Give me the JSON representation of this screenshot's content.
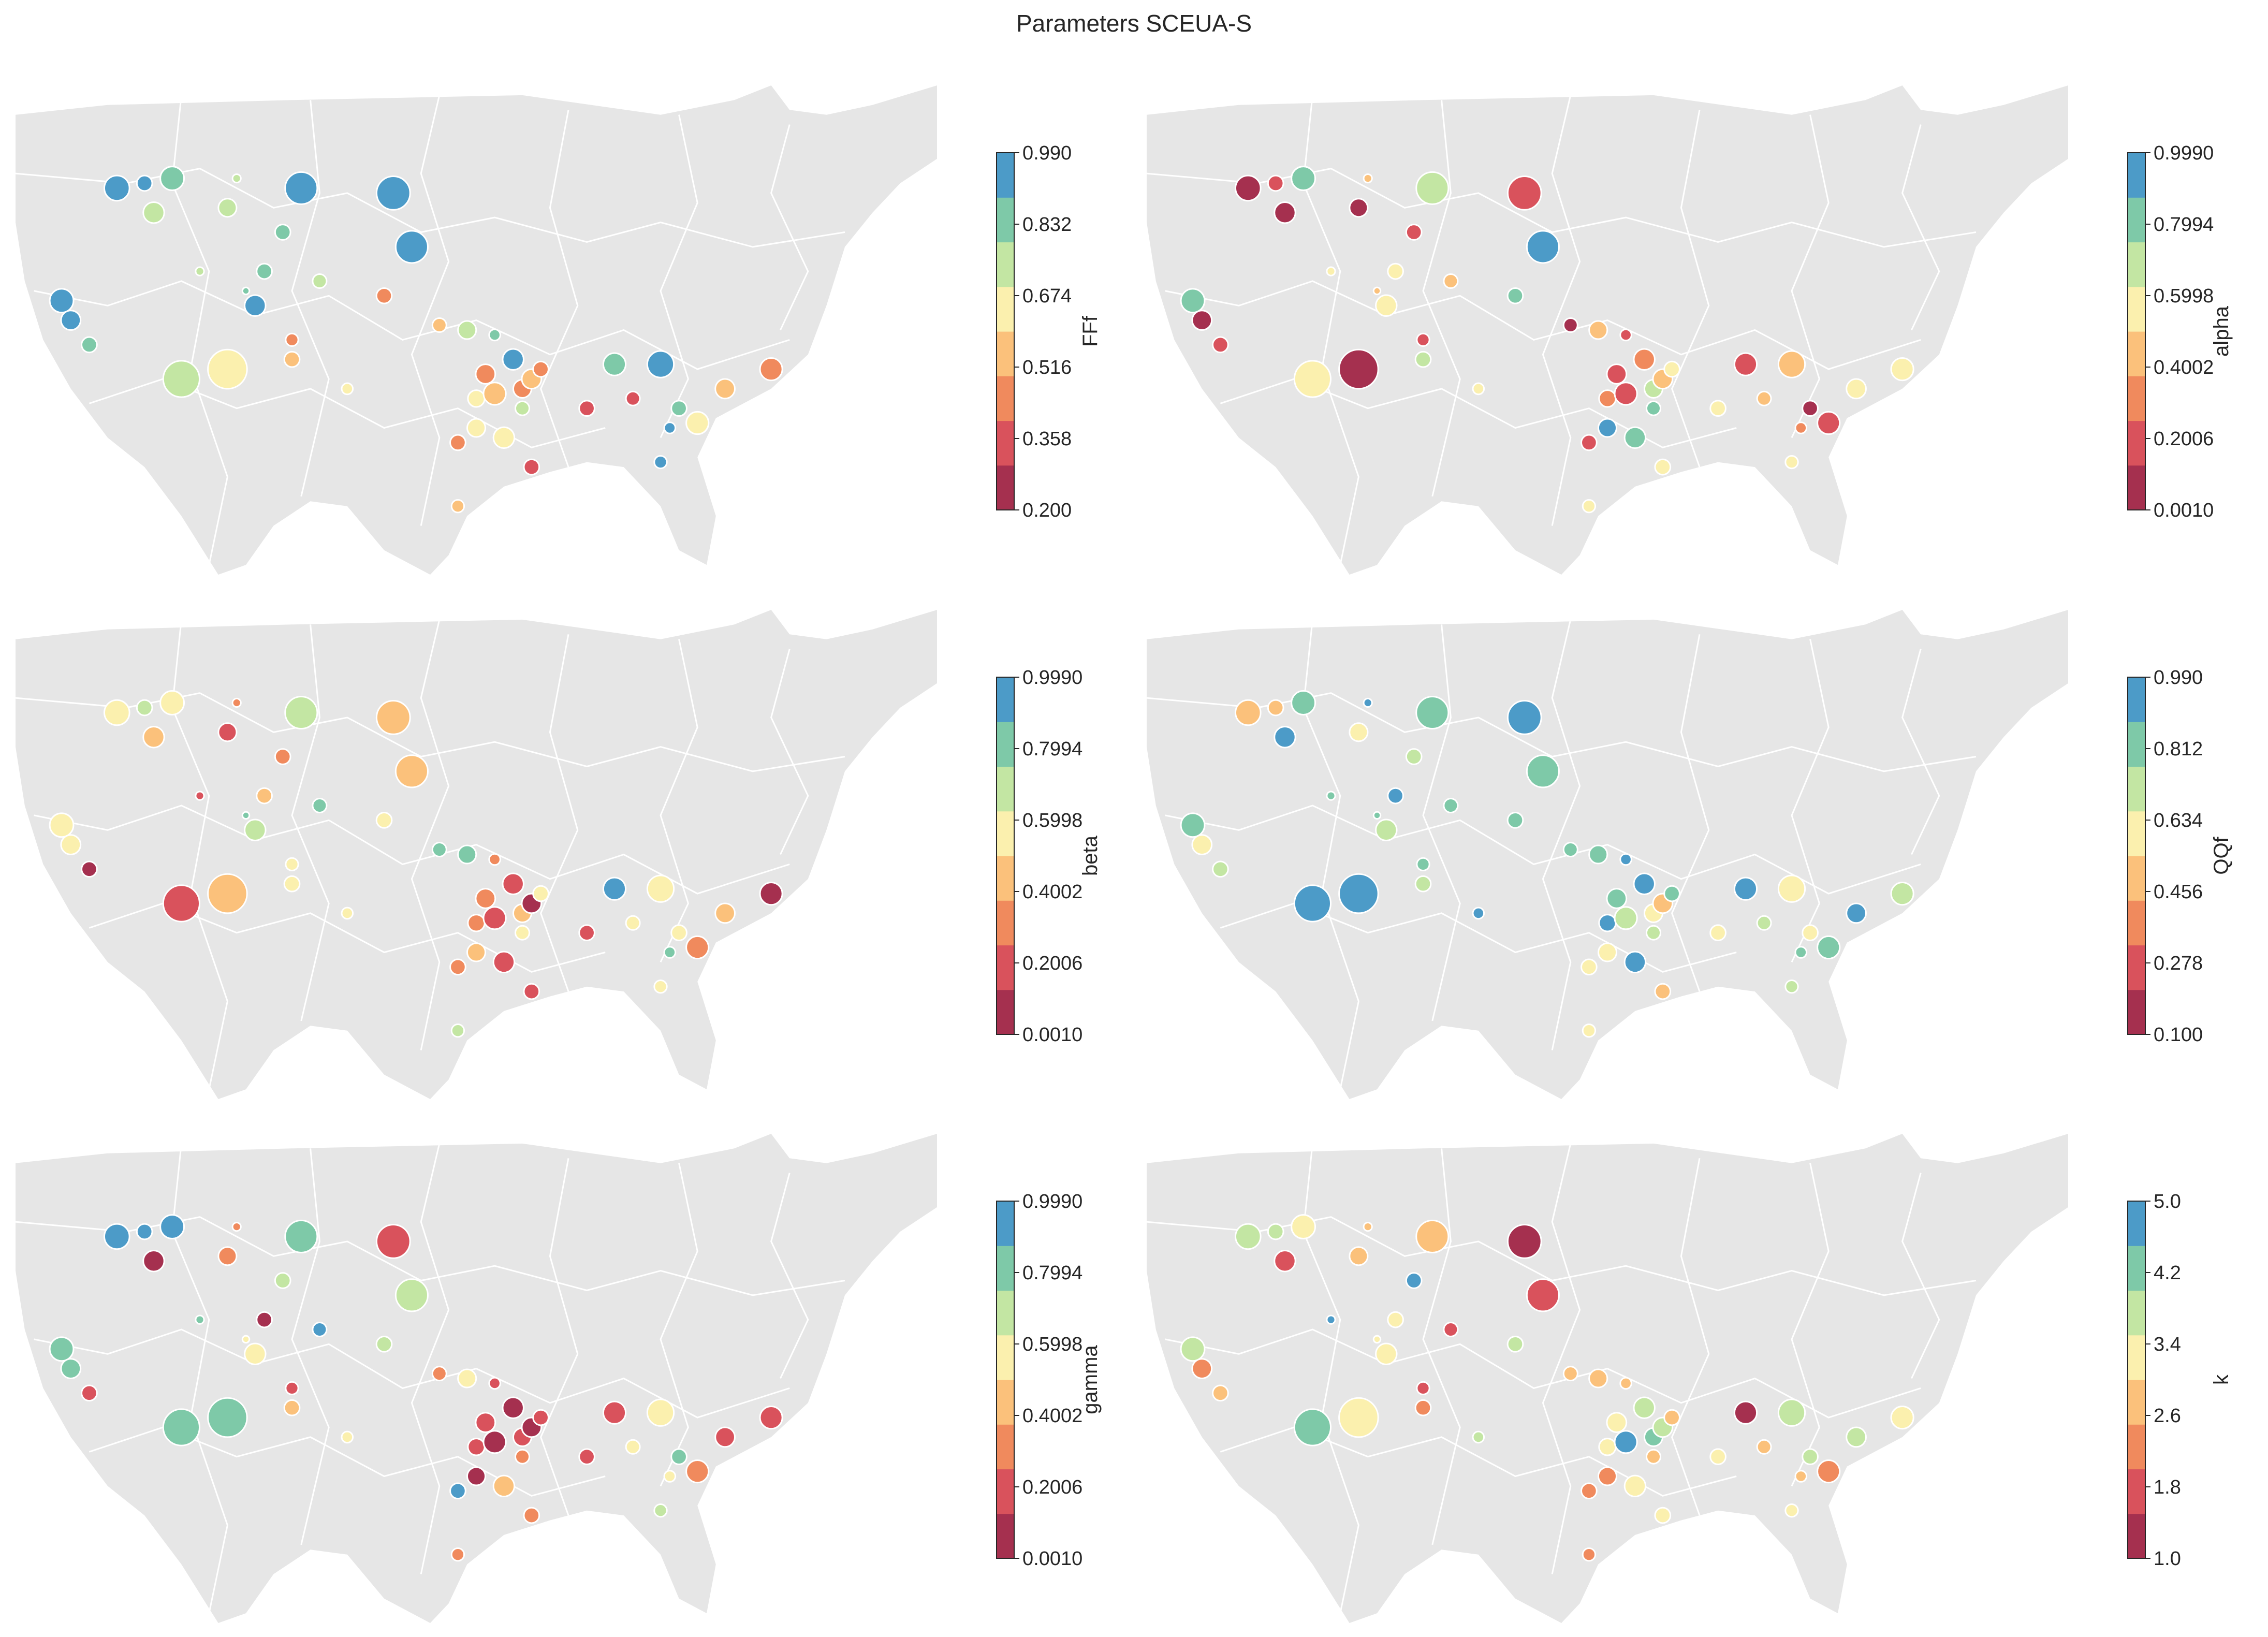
{
  "figure": {
    "title": "Parameters SCEUA-S"
  },
  "colors": {
    "map_land": "#e6e6e6",
    "map_border": "#ffffff",
    "marker_edge": "#ffffff",
    "cmap_spectral_8": [
      "#a5304f",
      "#d9525c",
      "#f08a5d",
      "#fbc17b",
      "#fbf0ae",
      "#c3e6a3",
      "#7ec9a8",
      "#4c9bc8",
      "#7367b1"
    ]
  },
  "chart_data": [
    {
      "type": "scatter",
      "panel": "top-left",
      "colorbar_label": "FFf",
      "colorbar_ticks": [
        "0.990",
        "0.832",
        "0.674",
        "0.516",
        "0.358",
        "0.200"
      ],
      "vmin": 0.2,
      "vmax": 0.99,
      "points_note": "station markers over map; values estimated from marker color",
      "values": [
        0.93,
        0.95,
        0.87,
        0.78,
        0.7,
        0.99,
        0.95,
        0.74,
        0.8,
        0.7,
        0.85,
        0.97,
        0.9,
        0.97,
        0.88,
        0.74,
        0.99,
        0.85,
        0.72,
        0.62,
        0.55,
        0.4,
        0.66,
        0.45,
        0.58,
        0.75,
        0.88,
        0.95,
        0.42,
        0.62,
        0.5,
        0.4,
        0.55,
        0.47,
        0.72,
        0.6,
        0.68,
        0.45,
        0.3,
        0.35,
        0.85,
        0.3,
        0.95,
        0.88,
        0.62,
        0.58,
        0.99,
        0.98,
        0.45,
        0.55
      ]
    },
    {
      "type": "scatter",
      "panel": "top-right",
      "colorbar_label": "alpha",
      "colorbar_ticks": [
        "0.9990",
        "0.7994",
        "0.5998",
        "0.4002",
        "0.2006",
        "0.0010"
      ],
      "vmin": 0.001,
      "vmax": 0.999,
      "values": [
        0.1,
        0.15,
        0.82,
        0.05,
        0.45,
        0.7,
        0.15,
        0.05,
        0.2,
        0.4,
        0.55,
        0.9,
        0.85,
        0.1,
        0.2,
        0.6,
        0.5,
        0.45,
        0.55,
        0.1,
        0.7,
        0.15,
        0.5,
        0.75,
        0.05,
        0.4,
        0.2,
        0.35,
        0.15,
        0.3,
        0.2,
        0.65,
        0.45,
        0.55,
        0.8,
        0.85,
        0.95,
        0.25,
        0.5,
        0.55,
        0.15,
        0.4,
        0.45,
        0.1,
        0.2,
        0.5,
        0.3,
        0.5,
        0.55,
        0.6
      ]
    },
    {
      "type": "scatter",
      "panel": "middle-left",
      "colorbar_label": "beta",
      "colorbar_ticks": [
        "0.9990",
        "0.7994",
        "0.5998",
        "0.4002",
        "0.2006",
        "0.0010"
      ],
      "vmin": 0.001,
      "vmax": 0.999,
      "values": [
        0.55,
        0.65,
        0.6,
        0.4,
        0.35,
        0.7,
        0.4,
        0.25,
        0.3,
        0.75,
        0.4,
        0.4,
        0.55,
        0.5,
        0.1,
        0.2,
        0.65,
        0.75,
        0.15,
        0.45,
        0.55,
        0.5,
        0.6,
        0.55,
        0.8,
        0.85,
        0.35,
        0.2,
        0.3,
        0.3,
        0.15,
        0.45,
        0.05,
        0.6,
        0.55,
        0.2,
        0.4,
        0.3,
        0.15,
        0.25,
        0.95,
        0.55,
        0.5,
        0.6,
        0.3,
        0.45,
        0.85,
        0.55,
        0.1,
        0.65
      ]
    },
    {
      "type": "scatter",
      "panel": "middle-right",
      "colorbar_label": "QQf",
      "colorbar_ticks": [
        "0.990",
        "0.812",
        "0.634",
        "0.456",
        "0.278",
        "0.100"
      ],
      "vmin": 0.1,
      "vmax": 0.99,
      "values": [
        0.45,
        0.5,
        0.85,
        0.95,
        0.9,
        0.85,
        0.95,
        0.55,
        0.7,
        0.8,
        0.95,
        0.85,
        0.8,
        0.65,
        0.7,
        0.85,
        0.7,
        0.85,
        0.9,
        0.95,
        0.7,
        0.85,
        0.95,
        0.85,
        0.8,
        0.8,
        0.95,
        0.9,
        0.85,
        0.95,
        0.75,
        0.6,
        0.45,
        0.85,
        0.7,
        0.95,
        0.6,
        0.55,
        0.5,
        0.6,
        0.95,
        0.7,
        0.65,
        0.55,
        0.8,
        0.95,
        0.85,
        0.7,
        0.75,
        0.6
      ]
    },
    {
      "type": "scatter",
      "panel": "bottom-left",
      "colorbar_label": "gamma",
      "colorbar_ticks": [
        "0.9990",
        "0.7994",
        "0.5998",
        "0.4002",
        "0.2006",
        "0.0010"
      ],
      "vmin": 0.001,
      "vmax": 0.999,
      "values": [
        0.95,
        0.95,
        0.95,
        0.05,
        0.3,
        0.75,
        0.15,
        0.3,
        0.65,
        0.9,
        0.1,
        0.7,
        0.85,
        0.8,
        0.25,
        0.8,
        0.55,
        0.55,
        0.85,
        0.75,
        0.4,
        0.2,
        0.6,
        0.7,
        0.3,
        0.55,
        0.15,
        0.1,
        0.2,
        0.15,
        0.1,
        0.25,
        0.05,
        0.2,
        0.3,
        0.4,
        0.05,
        0.95,
        0.3,
        0.2,
        0.15,
        0.5,
        0.55,
        0.75,
        0.3,
        0.25,
        0.6,
        0.7,
        0.15,
        0.3
      ]
    },
    {
      "type": "scatter",
      "panel": "bottom-right",
      "colorbar_label": "k",
      "colorbar_ticks": [
        "5.0",
        "4.2",
        "3.4",
        "2.6",
        "1.8",
        "1.0"
      ],
      "vmin": 1.0,
      "vmax": 5.0,
      "values": [
        3.8,
        3.6,
        3.2,
        1.5,
        2.8,
        2.6,
        1.4,
        2.6,
        4.6,
        1.8,
        3.0,
        1.6,
        3.6,
        2.2,
        2.8,
        4.6,
        3.0,
        3.4,
        4.4,
        3.0,
        2.0,
        1.8,
        3.6,
        3.8,
        2.5,
        2.8,
        2.7,
        3.5,
        3.4,
        3.2,
        4.5,
        4.2,
        3.9,
        2.8,
        2.5,
        3.2,
        2.0,
        2.4,
        3.4,
        3.0,
        1.3,
        2.6,
        3.5,
        3.9,
        2.0,
        3.6,
        2.9,
        3.0,
        3.4,
        2.4
      ]
    }
  ]
}
